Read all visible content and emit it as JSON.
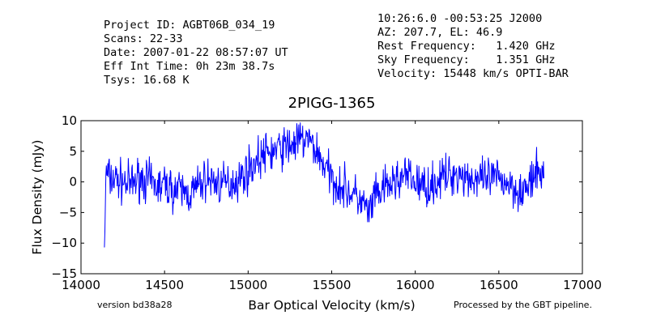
{
  "header": {
    "left": [
      "Project ID: AGBT06B_034_19",
      "Scans: 22-33",
      "Date: 2007-01-22 08:57:07 UT",
      "Eff Int Time: 0h 23m 38.7s",
      "Tsys: 16.68 K"
    ],
    "right": [
      "10:26:6.0 -00:53:25 J2000",
      "AZ: 207.7, EL: 46.9",
      "Rest Frequency:   1.420 GHz",
      "Sky Frequency:    1.351 GHz",
      "Velocity: 15448 km/s OPTI-BAR"
    ]
  },
  "footer": {
    "version": "version bd38a28",
    "pipeline": "Processed by the GBT pipeline."
  },
  "colors": {
    "line": "#0000ff",
    "pipeline_text": "#e84545",
    "version_text": "#444444"
  },
  "chart_data": {
    "type": "line",
    "title": "2PIGG-1365",
    "xlabel": "Bar Optical Velocity (km/s)",
    "ylabel": "Flux Density (mJy)",
    "xlim": [
      14000,
      17000
    ],
    "ylim": [
      -15,
      10
    ],
    "xticks": [
      14000,
      14500,
      15000,
      15500,
      16000,
      16500,
      17000
    ],
    "yticks": [
      -15,
      -10,
      -5,
      0,
      5,
      10
    ],
    "grid": false,
    "series": [
      {
        "x": [
          14140,
          14150,
          14175,
          14200,
          14250,
          14300,
          14350,
          14400,
          14450,
          14500,
          14550,
          14600,
          14650,
          14700,
          14750,
          14800,
          14850,
          14900,
          14950,
          15000,
          15050,
          15100,
          15150,
          15200,
          15250,
          15300,
          15350,
          15400,
          15450,
          15500,
          15550,
          15600,
          15650,
          15700,
          15720,
          15750,
          15800,
          15850,
          15900,
          15950,
          16000,
          16050,
          16100,
          16150,
          16200,
          16250,
          16300,
          16350,
          16400,
          16450,
          16500,
          16550,
          16600,
          16650,
          16700,
          16750,
          16770
        ],
        "y": [
          -10.7,
          1.5,
          0.5,
          0.5,
          0.0,
          -0.5,
          0.8,
          0.2,
          -0.8,
          -0.5,
          -1.2,
          -1.5,
          -2.0,
          -0.8,
          0.5,
          0.0,
          -0.5,
          0.0,
          0.5,
          2.0,
          3.5,
          4.5,
          5.0,
          5.5,
          6.0,
          6.5,
          7.0,
          5.5,
          3.0,
          0.5,
          -0.5,
          -1.5,
          -2.5,
          -4.0,
          -5.5,
          -3.0,
          -1.5,
          -0.5,
          0.5,
          1.0,
          0.0,
          -0.8,
          -0.5,
          0.5,
          1.0,
          1.5,
          1.0,
          0.5,
          0.0,
          0.5,
          0.5,
          0.0,
          -1.0,
          -1.5,
          0.0,
          2.0,
          1.0
        ]
      }
    ]
  }
}
